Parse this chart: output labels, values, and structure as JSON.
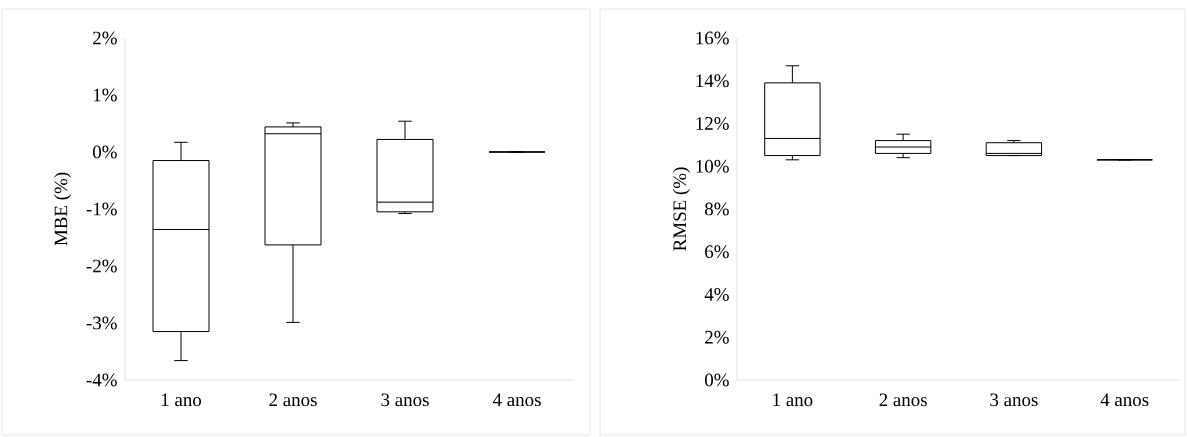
{
  "chart_data": [
    {
      "type": "box",
      "ylabel": "MBE (%)",
      "categories": [
        "1 ano",
        "2 anos",
        "3 anos",
        "4 anos"
      ],
      "boxes": [
        {
          "low": -3.66,
          "q1": -3.15,
          "median": -1.36,
          "q3": -0.15,
          "high": 0.17
        },
        {
          "low": -2.99,
          "q1": -1.63,
          "median": 0.32,
          "q3": 0.44,
          "high": 0.51
        },
        {
          "low": -1.08,
          "q1": -1.05,
          "median": -0.88,
          "q3": 0.22,
          "high": 0.54
        },
        {
          "low": 0,
          "q1": 0,
          "median": 0,
          "q3": 0,
          "high": 0
        }
      ],
      "color": "#000000",
      "ylim": [
        -4,
        2
      ],
      "yticks": [
        {
          "value": -4,
          "label": "-4%"
        },
        {
          "value": -3,
          "label": "-3%"
        },
        {
          "value": -2,
          "label": "-2%"
        },
        {
          "value": -1,
          "label": "-1%"
        },
        {
          "value": 0,
          "label": "0%"
        },
        {
          "value": 1,
          "label": "1%"
        },
        {
          "value": 2,
          "label": "2%"
        }
      ]
    },
    {
      "type": "box",
      "ylabel": "RMSE (%)",
      "categories": [
        "1 ano",
        "2 anos",
        "3 anos",
        "4 anos"
      ],
      "boxes": [
        {
          "low": 10.3,
          "q1": 10.5,
          "median": 11.3,
          "q3": 13.9,
          "high": 14.7
        },
        {
          "low": 10.4,
          "q1": 10.6,
          "median": 10.9,
          "q3": 11.2,
          "high": 11.5
        },
        {
          "low": 10.5,
          "q1": 10.5,
          "median": 10.6,
          "q3": 11.1,
          "high": 11.2
        },
        {
          "low": 10.3,
          "q1": 10.3,
          "median": 10.3,
          "q3": 10.3,
          "high": 10.3
        }
      ],
      "color": "#000000",
      "ylim": [
        0,
        16
      ],
      "yticks": [
        {
          "value": 0,
          "label": "0%"
        },
        {
          "value": 2,
          "label": "2%"
        },
        {
          "value": 4,
          "label": "4%"
        },
        {
          "value": 6,
          "label": "6%"
        },
        {
          "value": 8,
          "label": "8%"
        },
        {
          "value": 10,
          "label": "10%"
        },
        {
          "value": 12,
          "label": "12%"
        },
        {
          "value": 14,
          "label": "14%"
        },
        {
          "value": 16,
          "label": "16%"
        }
      ]
    }
  ]
}
